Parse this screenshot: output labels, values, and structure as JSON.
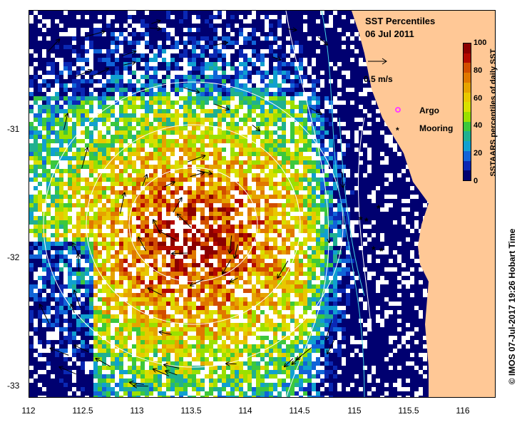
{
  "title_line1": "SST Percentiles",
  "title_line2": "06 Jul 2011",
  "vector_scale_label": "0.5 m/s",
  "legend": {
    "argo_label": "Argo",
    "mooring_label": "Mooring",
    "argo_color": "#ff40ff",
    "mooring_color": "#000000"
  },
  "colorbar": {
    "title": "SSTAARS percentiles of daily SST",
    "ticks": [
      "100",
      "80",
      "60",
      "40",
      "20",
      "0"
    ],
    "colors": [
      "#8b0000",
      "#b40a00",
      "#d24e00",
      "#e07800",
      "#e6a300",
      "#e8c800",
      "#d8e000",
      "#9be000",
      "#3cc83c",
      "#20b090",
      "#10a0d0",
      "#1064d8",
      "#0a28b4",
      "#000070"
    ]
  },
  "x_ticks": [
    "112",
    "112.5",
    "113",
    "113.5",
    "114",
    "114.5",
    "115",
    "115.5",
    "116"
  ],
  "y_ticks": [
    "-31",
    "-32",
    "-33"
  ],
  "credit": "© IMOS 07-Jul-2017 19:26 Hobart Time",
  "map_colors": {
    "land": "#ffc896",
    "missing": "#ffffff",
    "contour": "#ffffff",
    "isobath": "#40d0e0",
    "vector": "#000000"
  }
}
